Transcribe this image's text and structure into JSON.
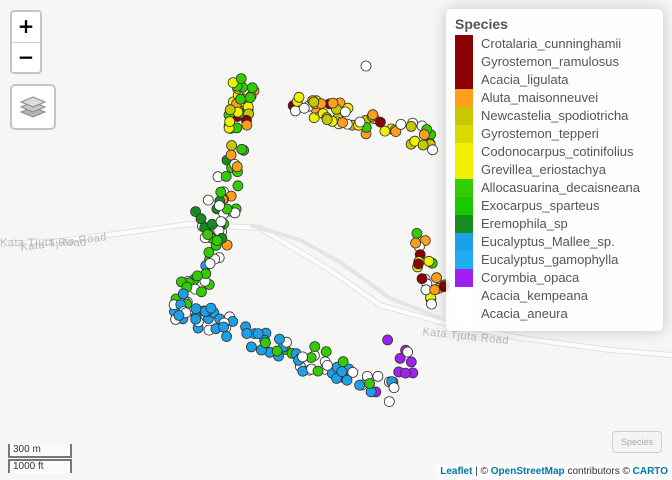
{
  "map": {
    "road_labels": [
      "Kata Tjuta Road",
      "Kata Tjuta Road",
      "Kata Tjuta Road"
    ]
  },
  "controls": {
    "zoom_in": "+",
    "zoom_out": "−",
    "layers_icon": "layers-icon",
    "toggle_label": "Species"
  },
  "legend": {
    "title": "Species",
    "items": [
      {
        "label": "Crotalaria_cunninghamii",
        "color": "#8b0000"
      },
      {
        "label": "Gyrostemon_ramulosus",
        "color": "#8b0000"
      },
      {
        "label": "Acacia_ligulata",
        "color": "#8b0000"
      },
      {
        "label": "Aluta_maisonneuvei",
        "color": "#ff9f1c"
      },
      {
        "label": "Newcastelia_spodiotricha",
        "color": "#c8c800"
      },
      {
        "label": "Gyrostemon_tepperi",
        "color": "#d9d900"
      },
      {
        "label": "Codonocarpus_cotinifolius",
        "color": "#f5f000"
      },
      {
        "label": "Grevillea_eriostachya",
        "color": "#f0f000"
      },
      {
        "label": "Allocasuarina_decaisneana",
        "color": "#33cc00"
      },
      {
        "label": "Exocarpus_sparteus",
        "color": "#1ac800"
      },
      {
        "label": "Eremophila_sp",
        "color": "#148c1e"
      },
      {
        "label": "Eucalyptus_Mallee_sp.",
        "color": "#1ea0e6"
      },
      {
        "label": "Eucalyptus_gamophylla",
        "color": "#1eaff0"
      },
      {
        "label": "Corymbia_opaca",
        "color": "#a020f0"
      },
      {
        "label": "Acacia_kempeana",
        "color": "#ffffff"
      },
      {
        "label": "Acacia_aneura",
        "color": "#ffffff"
      }
    ]
  },
  "scale": {
    "metric": "300 m",
    "imperial": "1000 ft"
  },
  "attribution": {
    "leaflet": "Leaflet",
    "sep": " | © ",
    "osm": "OpenStreetMap",
    "mid": " contributors © ",
    "carto": "CARTO"
  }
}
